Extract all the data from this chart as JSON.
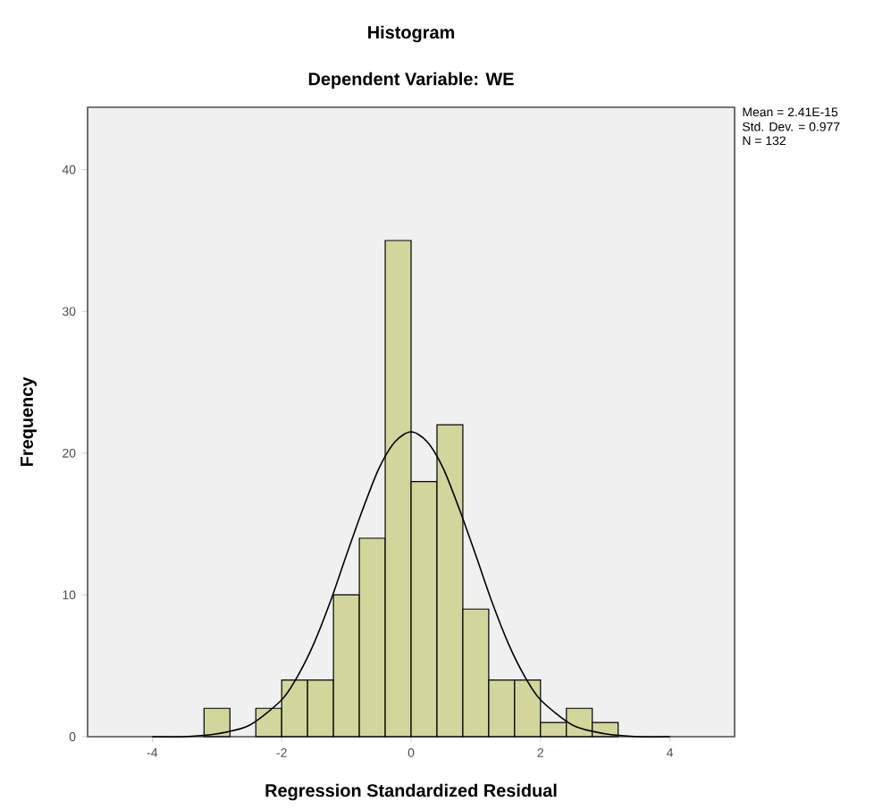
{
  "chart_data": {
    "type": "histogram",
    "title": "Histogram",
    "subtitle": "Dependent Variable: WE",
    "xlabel": "Regression Standardized Residual",
    "ylabel": "Frequency",
    "annotations": [
      "Mean = 2.41E-15",
      "Std. Dev. = 0.977",
      "N = 132"
    ],
    "series": [
      {
        "color": "#d3d69b",
        "bins": [
          -3.2,
          -2.8,
          -2.4,
          -2.0,
          -1.6,
          -1.2,
          -0.8,
          -0.4,
          0.0,
          0.4,
          0.8,
          1.2,
          1.6,
          2.0,
          2.4,
          2.8,
          3.2
        ],
        "values": [
          2,
          0,
          2,
          4,
          4,
          10,
          14,
          35,
          18,
          22,
          9,
          4,
          4,
          1,
          2,
          1
        ]
      },
      {
        "type": "line",
        "color": "#000000",
        "x": [
          -4,
          -3.5,
          -3,
          -2.5,
          -2,
          -1.75,
          -1.5,
          -1.25,
          -1,
          -0.75,
          -0.5,
          -0.25,
          0,
          0.25,
          0.5,
          0.75,
          1,
          1.25,
          1.5,
          1.75,
          2,
          2.5,
          3,
          3.5,
          4
        ],
        "values": [
          0,
          0,
          0.2,
          0.8,
          2.6,
          4.3,
          6.6,
          9.5,
          12.8,
          16,
          18.9,
          20.8,
          21.5,
          20.8,
          18.9,
          16,
          12.8,
          9.5,
          6.6,
          4.3,
          2.6,
          0.8,
          0.2,
          0,
          0
        ]
      }
    ],
    "xlim": [
      -5,
      5
    ],
    "ylim": [
      0,
      44.4
    ],
    "xticks": [
      -4,
      -2,
      0,
      2,
      4
    ],
    "yticks": [
      0,
      10,
      20,
      30,
      40
    ],
    "grid": false
  }
}
